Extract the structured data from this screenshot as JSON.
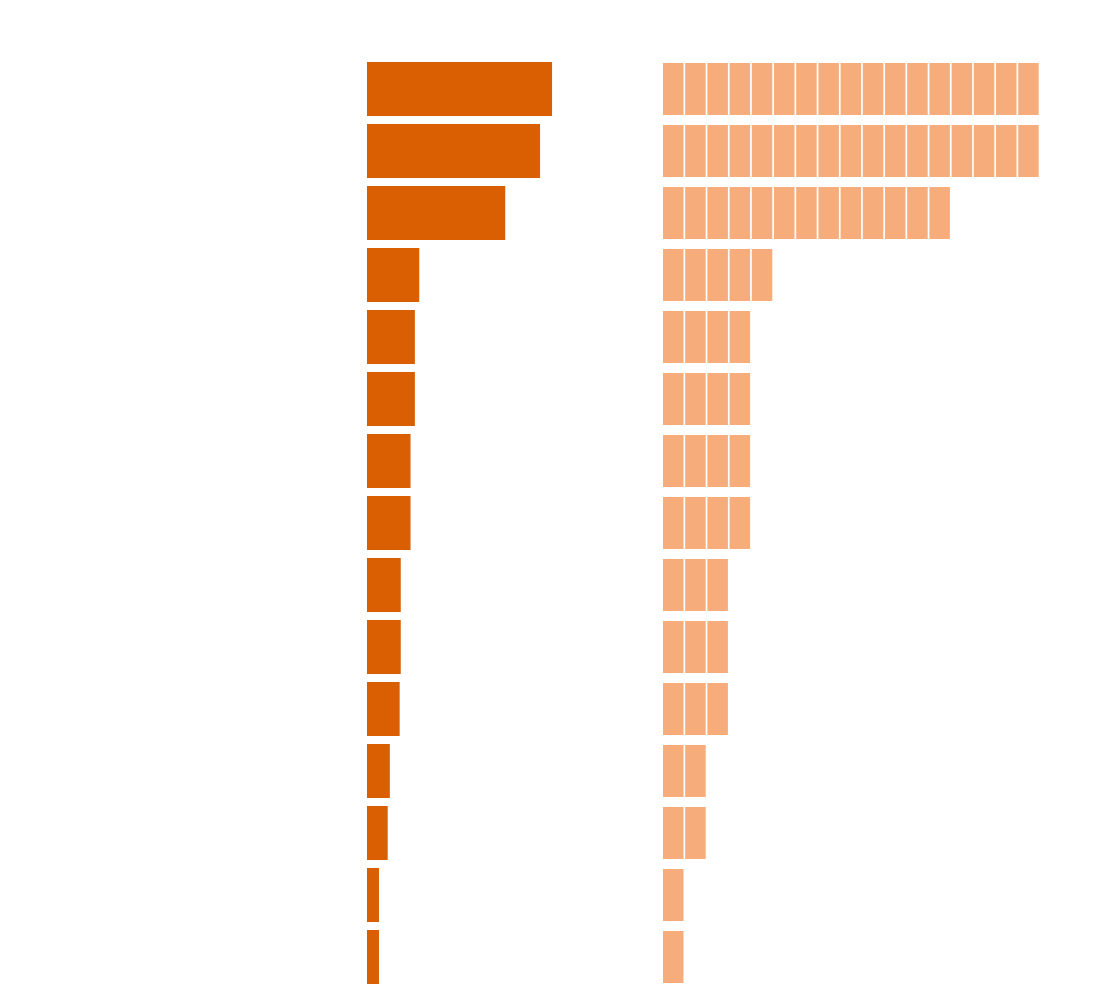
{
  "chart_data": [
    {
      "type": "bar",
      "color": "#d95f02",
      "xlim": [
        0,
        26
      ],
      "values": [
        17,
        15.9,
        12.7,
        4.8,
        4.4,
        4.4,
        4.0,
        4.0,
        3.1,
        3.1,
        3.0,
        2.1,
        1.9,
        1.1,
        1.1
      ]
    },
    {
      "type": "waffle",
      "color": "#f6ad7b",
      "values": [
        17,
        17,
        13,
        5,
        4,
        4,
        4,
        4,
        3,
        3,
        3,
        2,
        2,
        1,
        1
      ]
    }
  ]
}
